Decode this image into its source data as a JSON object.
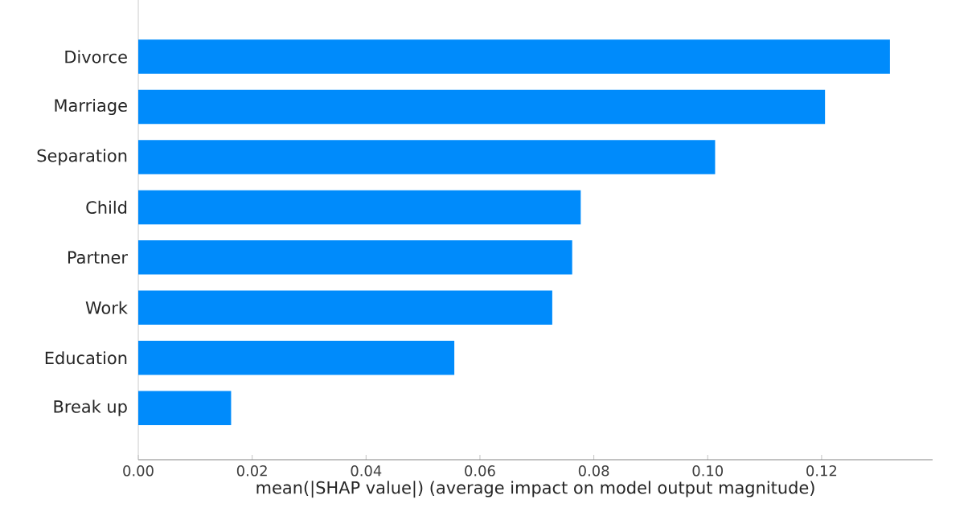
{
  "chart_data": {
    "type": "bar",
    "orientation": "horizontal",
    "categories": [
      "Divorce",
      "Marriage",
      "Separation",
      "Child",
      "Partner",
      "Work",
      "Education",
      "Break up"
    ],
    "values": [
      0.132,
      0.1206,
      0.1013,
      0.0777,
      0.0762,
      0.0727,
      0.0555,
      0.0163
    ],
    "color": "#008bfb",
    "xlabel": "mean(|SHAP value|) (average impact on model output magnitude)",
    "xlim": [
      0,
      0.1395
    ],
    "xticks": [
      {
        "value": 0,
        "label": "0.00"
      },
      {
        "value": 0.02,
        "label": "0.02"
      },
      {
        "value": 0.04,
        "label": "0.04"
      },
      {
        "value": 0.06,
        "label": "0.06"
      },
      {
        "value": 0.08,
        "label": "0.08"
      },
      {
        "value": 0.1,
        "label": "0.10"
      },
      {
        "value": 0.12,
        "label": "0.12"
      }
    ],
    "grid": false
  }
}
